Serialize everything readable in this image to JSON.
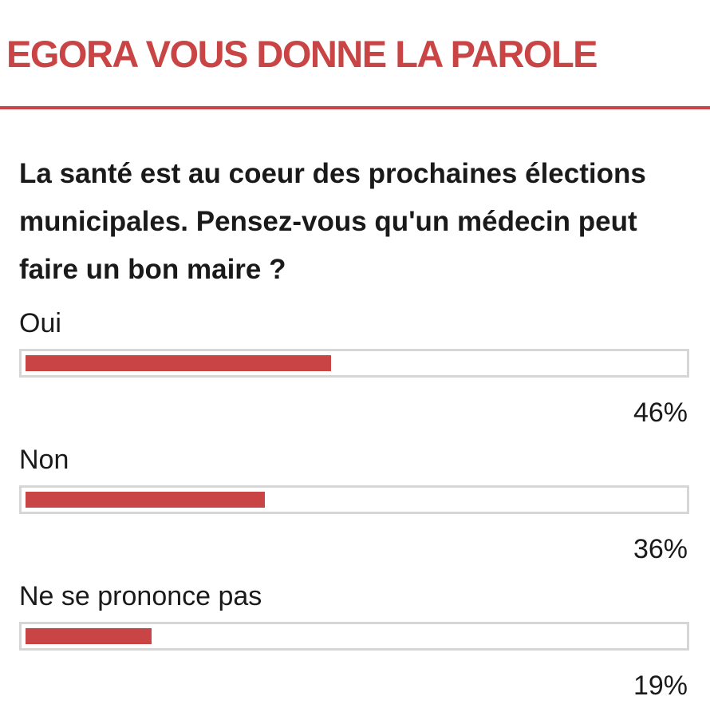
{
  "header": {
    "title": "EGORA VOUS DONNE LA PAROLE",
    "accent_color": "#c94444"
  },
  "poll": {
    "question": "La santé est au coeur des prochaines élections municipales. Pensez-vous qu'un médecin peut faire un bon maire ?",
    "answers": [
      {
        "label": "Oui",
        "percent_label": "46%",
        "percent": 46
      },
      {
        "label": "Non",
        "percent_label": "36%",
        "percent": 36
      },
      {
        "label": "Ne se prononce pas",
        "percent_label": "19%",
        "percent": 19
      }
    ]
  }
}
